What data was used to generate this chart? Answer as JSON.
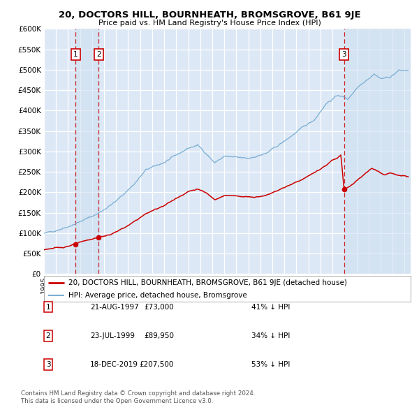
{
  "title": "20, DOCTORS HILL, BOURNHEATH, BROMSGROVE, B61 9JE",
  "subtitle": "Price paid vs. HM Land Registry's House Price Index (HPI)",
  "legend_line1": "20, DOCTORS HILL, BOURNHEATH, BROMSGROVE, B61 9JE (detached house)",
  "legend_line2": "HPI: Average price, detached house, Bromsgrove",
  "footer1": "Contains HM Land Registry data © Crown copyright and database right 2024.",
  "footer2": "This data is licensed under the Open Government Licence v3.0.",
  "red_color": "#cc0000",
  "blue_color": "#7aaed4",
  "shade_color": "#ccdff0",
  "background_color": "#dce8f5",
  "plot_bg_color": "#dce8f5",
  "grid_color": "#ffffff",
  "xlim_start": 1995.0,
  "xlim_end": 2025.5,
  "ylim_min": 0,
  "ylim_max": 600000,
  "ytick_step": 50000,
  "purchases": [
    {
      "date_str": "21-AUG-1997",
      "date_num": 1997.637,
      "price": 73000,
      "label": "1",
      "pct": "41% ↓ HPI"
    },
    {
      "date_str": "23-JUL-1999",
      "date_num": 1999.558,
      "price": 89950,
      "label": "2",
      "pct": "34% ↓ HPI"
    },
    {
      "date_str": "18-DEC-2019",
      "date_num": 2019.962,
      "price": 207500,
      "label": "3",
      "pct": "53% ↓ HPI"
    }
  ],
  "table_rows": [
    {
      "num": "1",
      "date": "21-AUG-1997",
      "price": "£73,000",
      "pct": "41% ↓ HPI"
    },
    {
      "num": "2",
      "date": "23-JUL-1999",
      "price": "£89,950",
      "pct": "34% ↓ HPI"
    },
    {
      "num": "3",
      "date": "18-DEC-2019",
      "price": "£207,500",
      "pct": "53% ↓ HPI"
    }
  ]
}
